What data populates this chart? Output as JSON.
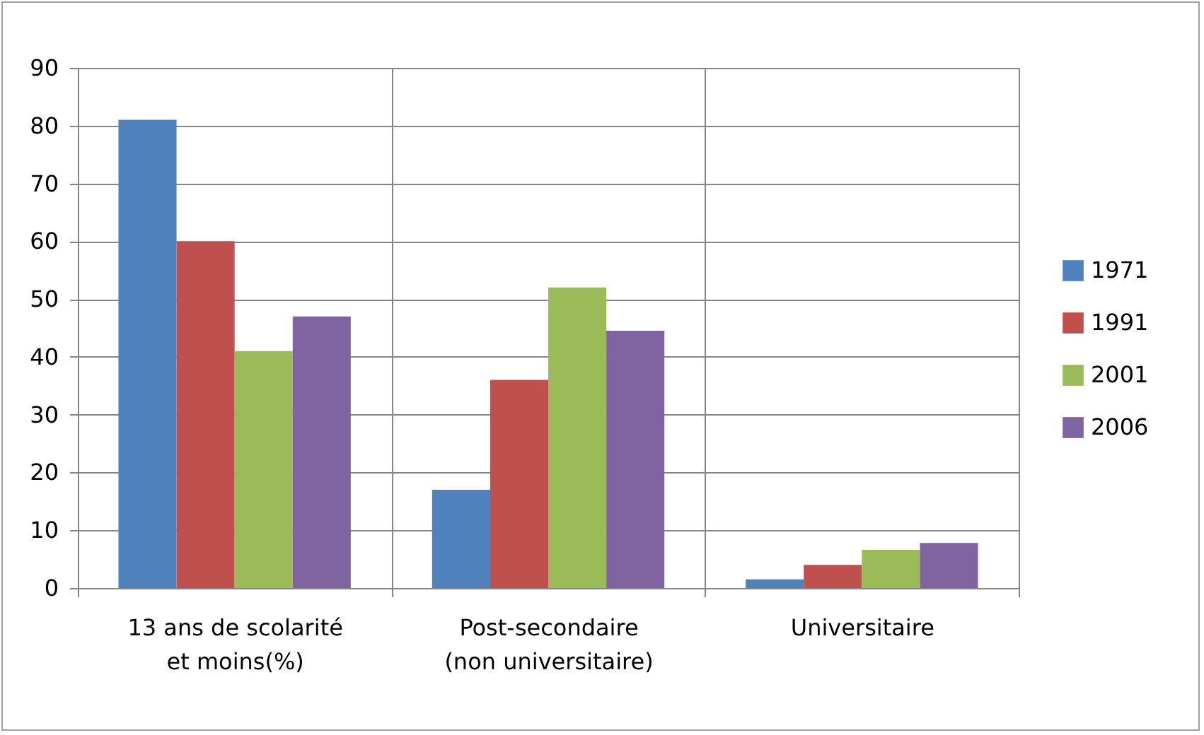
{
  "chart_data": {
    "type": "bar",
    "categories": [
      "13 ans de scolarité\net  moins(%)",
      "Post-secondaire\n(non universitaire)",
      "Universitaire"
    ],
    "series": [
      {
        "name": "1971",
        "color": "#4f81bd",
        "values": [
          81,
          17,
          1.5
        ]
      },
      {
        "name": "1991",
        "color": "#c0504d",
        "values": [
          60,
          36,
          4
        ]
      },
      {
        "name": "2001",
        "color": "#9bbb59",
        "values": [
          41,
          52,
          6.6
        ]
      },
      {
        "name": "2006",
        "color": "#8064a2",
        "values": [
          47,
          44.5,
          7.8
        ]
      }
    ],
    "ylim": [
      0,
      90
    ],
    "yticks": [
      0,
      10,
      20,
      30,
      40,
      50,
      60,
      70,
      80,
      90
    ],
    "grid": true,
    "legend": "right"
  }
}
